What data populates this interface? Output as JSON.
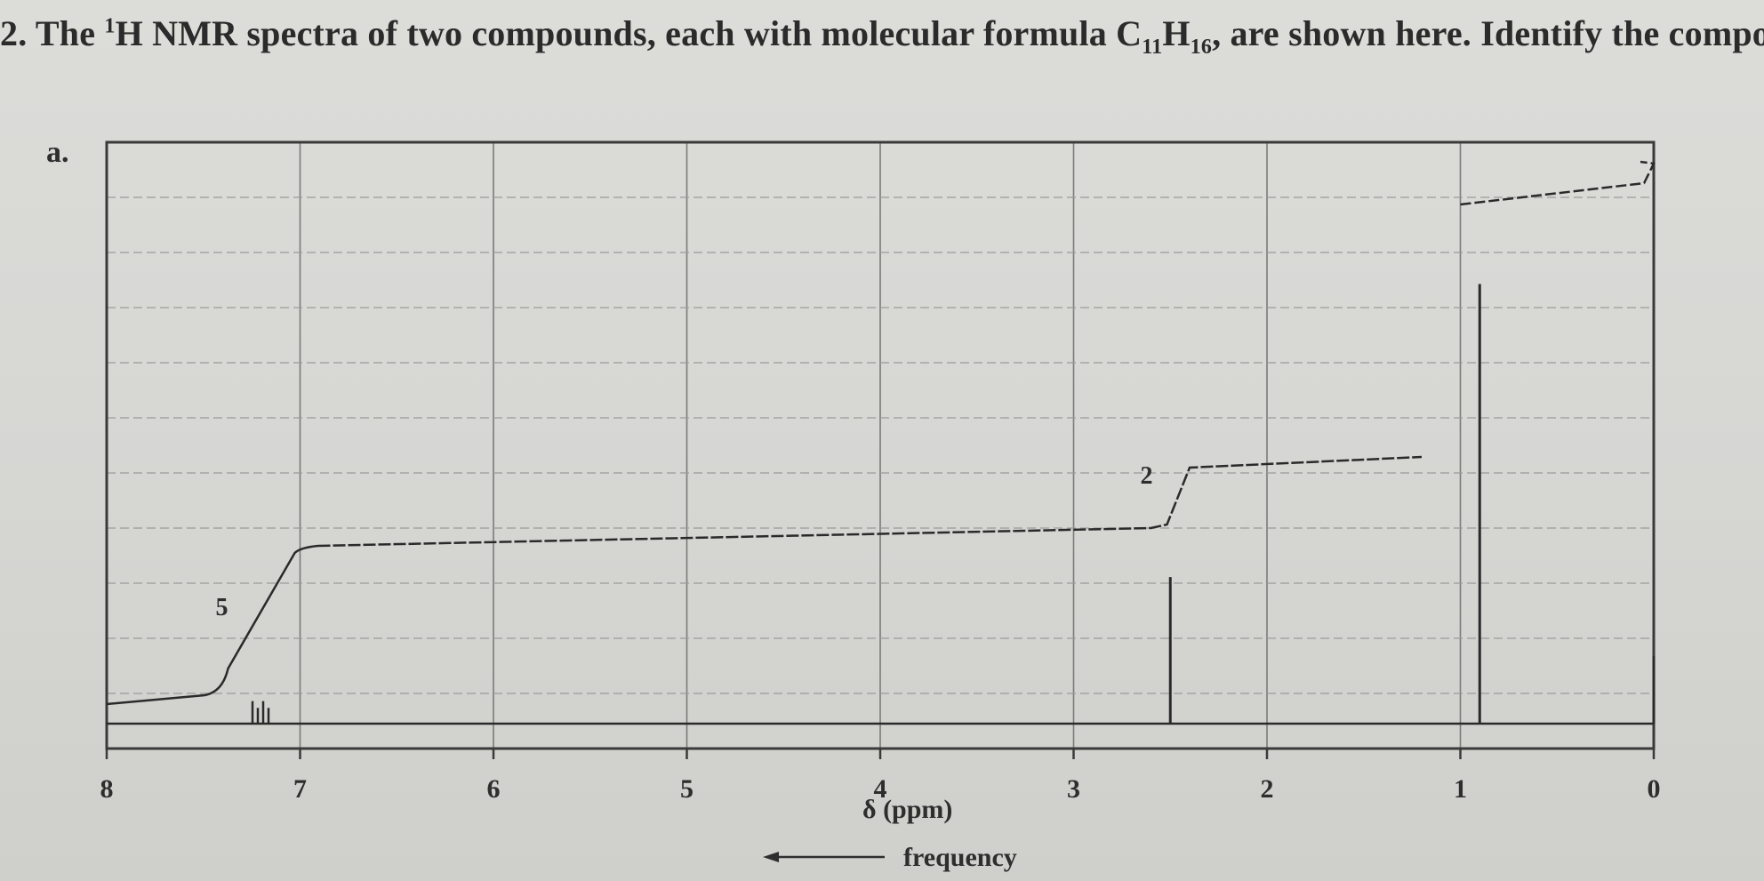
{
  "question": {
    "number": "2.",
    "text_before": "The ",
    "sup": "1",
    "text_middle": "H NMR spectra of two compounds, each with molecular formula C",
    "sub1": "11",
    "text_h": "H",
    "sub2": "16",
    "text_after": ", are shown here. Identify the compoun"
  },
  "chart_data": {
    "type": "line",
    "panel_label": "a.",
    "xlabel": "δ (ppm)",
    "arrow_label": "frequency",
    "xlim": [
      8,
      0
    ],
    "x_reversed": true,
    "x_ticks": [
      8,
      7,
      6,
      5,
      4,
      3,
      2,
      1,
      0
    ],
    "x_tick_labels": [
      "8",
      "7",
      "6",
      "5",
      "4",
      "3",
      "2",
      "1",
      "0"
    ],
    "grid": true,
    "peaks": [
      {
        "shift": 7.2,
        "relative_height": 0.04,
        "multiplet": true
      },
      {
        "shift": 2.5,
        "relative_height": 0.26
      },
      {
        "shift": 0.9,
        "relative_height": 0.78
      },
      {
        "shift": 0.0,
        "relative_height": 0.12
      }
    ],
    "integration": [
      {
        "shift_from": 7.4,
        "shift_to": 7.0,
        "label": "5"
      },
      {
        "shift_from": 2.6,
        "shift_to": 2.4,
        "label": "2"
      }
    ]
  }
}
